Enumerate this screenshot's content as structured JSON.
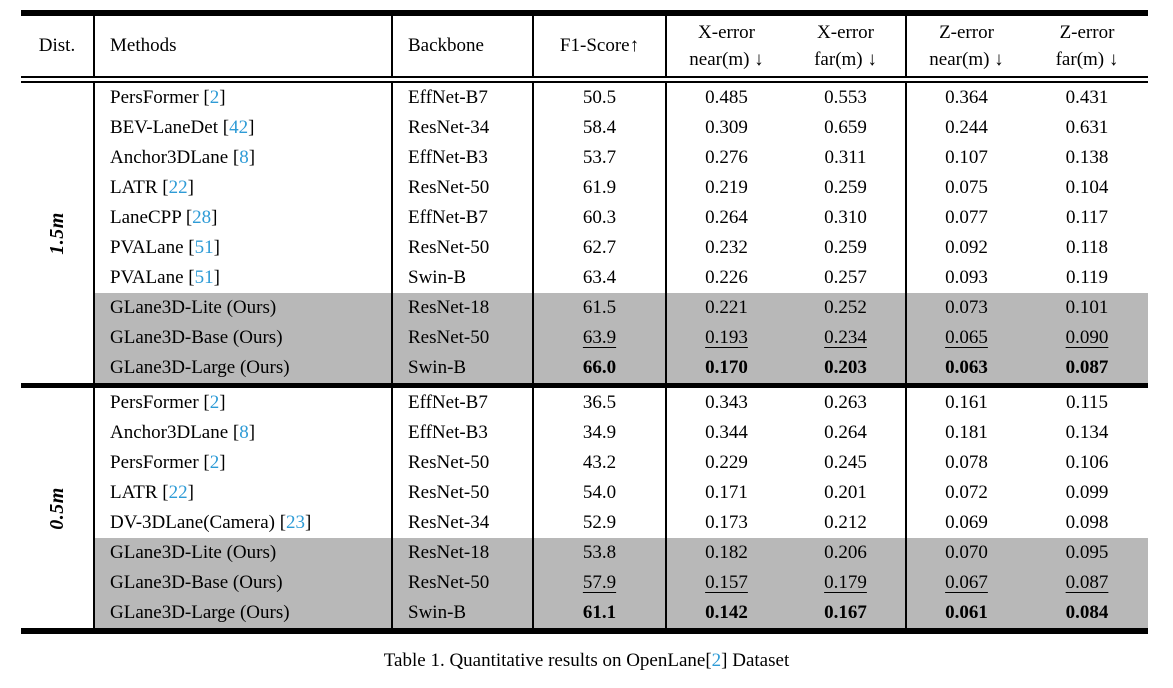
{
  "colors": {
    "citation_blue": "#2e9bd6",
    "highlight_gray": "#b8b8b8",
    "text": "#000000",
    "background": "#ffffff"
  },
  "table": {
    "header": {
      "dist": "Dist.",
      "methods": "Methods",
      "backbone": "Backbone",
      "f1": "F1-Score↑",
      "x_near": {
        "line1": "X-error",
        "line2": "near(m) ↓"
      },
      "x_far": {
        "line1": "X-error",
        "line2": "far(m) ↓"
      },
      "z_near": {
        "line1": "Z-error",
        "line2": "near(m) ↓"
      },
      "z_far": {
        "line1": "Z-error",
        "line2": "far(m) ↓"
      }
    },
    "groups": [
      {
        "dist_label": "1.5m",
        "separator_after": true,
        "rows": [
          {
            "method": "PersFormer",
            "cite": "2",
            "backbone": "EffNet-B7",
            "f1": "50.5",
            "x_near": "0.485",
            "x_far": "0.553",
            "z_near": "0.364",
            "z_far": "0.431",
            "highlight": false,
            "emphasis": "normal"
          },
          {
            "method": "BEV-LaneDet",
            "cite": "42",
            "backbone": "ResNet-34",
            "f1": "58.4",
            "x_near": "0.309",
            "x_far": "0.659",
            "z_near": "0.244",
            "z_far": "0.631",
            "highlight": false,
            "emphasis": "normal"
          },
          {
            "method": "Anchor3DLane",
            "cite": "8",
            "backbone": "EffNet-B3",
            "f1": "53.7",
            "x_near": "0.276",
            "x_far": "0.311",
            "z_near": "0.107",
            "z_far": "0.138",
            "highlight": false,
            "emphasis": "normal"
          },
          {
            "method": "LATR",
            "cite": "22",
            "backbone": "ResNet-50",
            "f1": "61.9",
            "x_near": "0.219",
            "x_far": "0.259",
            "z_near": "0.075",
            "z_far": "0.104",
            "highlight": false,
            "emphasis": "normal"
          },
          {
            "method": "LaneCPP",
            "cite": "28",
            "backbone": "EffNet-B7",
            "f1": "60.3",
            "x_near": "0.264",
            "x_far": "0.310",
            "z_near": "0.077",
            "z_far": "0.117",
            "highlight": false,
            "emphasis": "normal"
          },
          {
            "method": "PVALane",
            "cite": "51",
            "backbone": "ResNet-50",
            "f1": "62.7",
            "x_near": "0.232",
            "x_far": "0.259",
            "z_near": "0.092",
            "z_far": "0.118",
            "highlight": false,
            "emphasis": "normal"
          },
          {
            "method": "PVALane",
            "cite": "51",
            "backbone": "Swin-B",
            "f1": "63.4",
            "x_near": "0.226",
            "x_far": "0.257",
            "z_near": "0.093",
            "z_far": "0.119",
            "highlight": false,
            "emphasis": "normal"
          },
          {
            "method": "GLane3D-Lite (Ours)",
            "cite": null,
            "backbone": "ResNet-18",
            "f1": "61.5",
            "x_near": "0.221",
            "x_far": "0.252",
            "z_near": "0.073",
            "z_far": "0.101",
            "highlight": true,
            "emphasis": "normal"
          },
          {
            "method": "GLane3D-Base (Ours)",
            "cite": null,
            "backbone": "ResNet-50",
            "f1": "63.9",
            "x_near": "0.193",
            "x_far": "0.234",
            "z_near": "0.065",
            "z_far": "0.090",
            "highlight": true,
            "emphasis": "underline"
          },
          {
            "method": "GLane3D-Large (Ours)",
            "cite": null,
            "backbone": "Swin-B",
            "f1": "66.0",
            "x_near": "0.170",
            "x_far": "0.203",
            "z_near": "0.063",
            "z_far": "0.087",
            "highlight": true,
            "emphasis": "bold"
          }
        ]
      },
      {
        "dist_label": "0.5m",
        "separator_after": false,
        "rows": [
          {
            "method": "PersFormer",
            "cite": "2",
            "backbone": "EffNet-B7",
            "f1": "36.5",
            "x_near": "0.343",
            "x_far": "0.263",
            "z_near": "0.161",
            "z_far": "0.115",
            "highlight": false,
            "emphasis": "normal"
          },
          {
            "method": "Anchor3DLane",
            "cite": "8",
            "backbone": "EffNet-B3",
            "f1": "34.9",
            "x_near": "0.344",
            "x_far": "0.264",
            "z_near": "0.181",
            "z_far": "0.134",
            "highlight": false,
            "emphasis": "normal"
          },
          {
            "method": "PersFormer",
            "cite": "2",
            "backbone": "ResNet-50",
            "f1": "43.2",
            "x_near": "0.229",
            "x_far": "0.245",
            "z_near": "0.078",
            "z_far": "0.106",
            "highlight": false,
            "emphasis": "normal"
          },
          {
            "method": "LATR",
            "cite": "22",
            "backbone": "ResNet-50",
            "f1": "54.0",
            "x_near": "0.171",
            "x_far": "0.201",
            "z_near": "0.072",
            "z_far": "0.099",
            "highlight": false,
            "emphasis": "normal"
          },
          {
            "method": "DV-3DLane(Camera)",
            "cite": "23",
            "backbone": "ResNet-34",
            "f1": "52.9",
            "x_near": "0.173",
            "x_far": "0.212",
            "z_near": "0.069",
            "z_far": "0.098",
            "highlight": false,
            "emphasis": "normal"
          },
          {
            "method": "GLane3D-Lite (Ours)",
            "cite": null,
            "backbone": "ResNet-18",
            "f1": "53.8",
            "x_near": "0.182",
            "x_far": "0.206",
            "z_near": "0.070",
            "z_far": "0.095",
            "highlight": true,
            "emphasis": "normal"
          },
          {
            "method": "GLane3D-Base (Ours)",
            "cite": null,
            "backbone": "ResNet-50",
            "f1": "57.9",
            "x_near": "0.157",
            "x_far": "0.179",
            "z_near": "0.067",
            "z_far": "0.087",
            "highlight": true,
            "emphasis": "underline"
          },
          {
            "method": "GLane3D-Large (Ours)",
            "cite": null,
            "backbone": "Swin-B",
            "f1": "61.1",
            "x_near": "0.142",
            "x_far": "0.167",
            "z_near": "0.061",
            "z_far": "0.084",
            "highlight": true,
            "emphasis": "bold"
          }
        ]
      }
    ]
  },
  "caption": {
    "prefix": "Table 1. Quantitative results on OpenLane[",
    "cite": "2",
    "suffix": "] Dataset"
  }
}
